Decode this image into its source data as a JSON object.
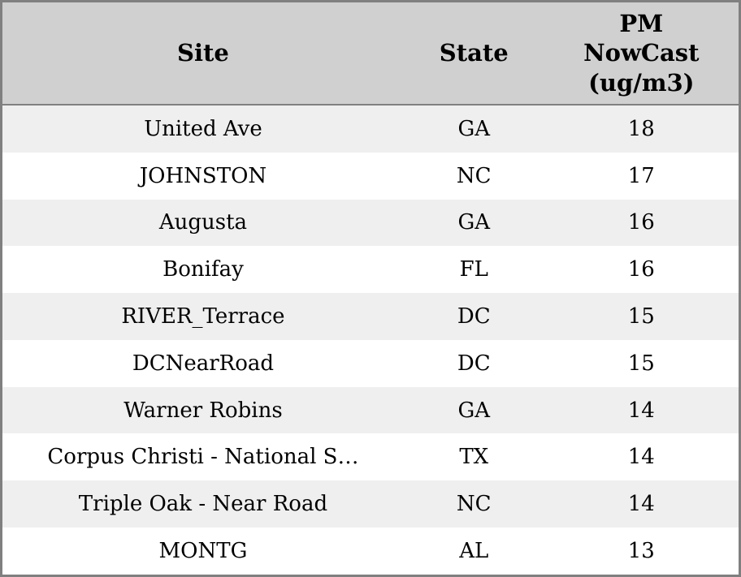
{
  "table": {
    "headers": {
      "site": "Site",
      "state": "State",
      "pm": "PM\nNowCast\n(ug/m3)"
    },
    "rows": [
      {
        "site": "United Ave",
        "state": "GA",
        "value": "18"
      },
      {
        "site": "JOHNSTON",
        "state": "NC",
        "value": "17"
      },
      {
        "site": "Augusta",
        "state": "GA",
        "value": "16"
      },
      {
        "site": "Bonifay",
        "state": "FL",
        "value": "16"
      },
      {
        "site": "RIVER_Terrace",
        "state": "DC",
        "value": "15"
      },
      {
        "site": "DCNearRoad",
        "state": "DC",
        "value": "15"
      },
      {
        "site": "Warner Robins",
        "state": "GA",
        "value": "14"
      },
      {
        "site": "Corpus Christi - National S…",
        "state": "TX",
        "value": "14"
      },
      {
        "site": "Triple Oak - Near Road",
        "state": "NC",
        "value": "14"
      },
      {
        "site": "MONTG",
        "state": "AL",
        "value": "13"
      }
    ]
  },
  "chart_data": {
    "type": "table",
    "title": "",
    "columns": [
      "Site",
      "State",
      "PM NowCast (ug/m3)"
    ],
    "rows": [
      [
        "United Ave",
        "GA",
        18
      ],
      [
        "JOHNSTON",
        "NC",
        17
      ],
      [
        "Augusta",
        "GA",
        16
      ],
      [
        "Bonifay",
        "FL",
        16
      ],
      [
        "RIVER_Terrace",
        "DC",
        15
      ],
      [
        "DCNearRoad",
        "DC",
        15
      ],
      [
        "Warner Robins",
        "GA",
        14
      ],
      [
        "Corpus Christi - National S…",
        "TX",
        14
      ],
      [
        "Triple Oak - Near Road",
        "NC",
        14
      ],
      [
        "MONTG",
        "AL",
        13
      ]
    ],
    "layout_hints": {
      "header_bg": "#d0d0d0",
      "row_alt_bg": "#efefef",
      "row_bg": "#ffffff",
      "border_color": "#808080",
      "text_color": "#000000",
      "cell_alignment": "center"
    }
  }
}
